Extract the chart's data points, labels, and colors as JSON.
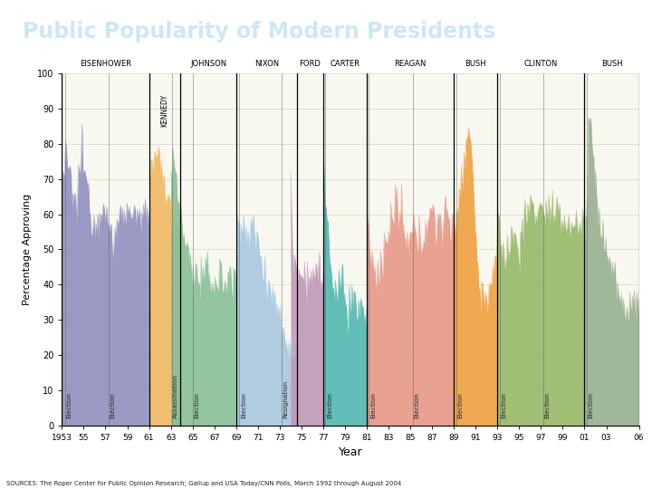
{
  "title": "Public Popularity of Modern Presidents",
  "title_bg": "#1479b8",
  "title_color": "#cce8f5",
  "xlabel": "Year",
  "ylabel": "Percentage Approving",
  "source_text": "SOURCES: The Roper Center for Public Opinion Research; Gallup and USA Today/CNN Polls, March 1992 through August 2004",
  "ylim": [
    0,
    100
  ],
  "chart_bg": "#f8f8f0",
  "presidents": [
    {
      "name": "EISENHOWER",
      "color": "#9090c0",
      "start": 1953,
      "end": 1961,
      "profile": [
        70,
        71,
        72,
        74,
        75,
        74,
        73,
        72,
        71,
        70,
        68,
        66,
        65,
        63,
        62,
        62,
        64,
        66,
        69,
        73,
        74,
        75,
        76,
        75,
        74,
        72,
        70,
        68,
        67,
        65,
        63,
        62,
        61,
        60,
        59,
        58,
        57,
        57,
        58,
        59,
        60,
        61,
        62,
        63,
        63,
        62,
        61,
        60,
        59,
        58,
        57,
        56,
        55,
        54,
        53,
        52,
        52,
        53,
        54,
        55,
        56,
        57,
        58,
        59,
        60,
        61,
        62,
        63,
        63,
        62,
        61,
        60,
        59,
        58,
        59,
        60,
        61,
        62,
        63,
        62,
        61,
        60,
        59,
        58,
        57,
        56,
        57,
        58,
        59,
        60,
        59,
        58,
        57,
        56,
        57,
        58
      ]
    },
    {
      "name": "KENNEDY",
      "color": "#f0b860",
      "start": 1961,
      "end": 1963.9,
      "profile": [
        72,
        73,
        74,
        76,
        77,
        78,
        79,
        78,
        77,
        75,
        73,
        71,
        70,
        69,
        68,
        67,
        66,
        65,
        64,
        63,
        62,
        62,
        61,
        60,
        59,
        59,
        58,
        57,
        56
      ]
    },
    {
      "name": "JOHNSON",
      "color": "#88c098",
      "start": 1963,
      "end": 1969,
      "profile": [
        76,
        75,
        74,
        73,
        72,
        70,
        68,
        66,
        64,
        62,
        60,
        58,
        56,
        55,
        54,
        53,
        52,
        51,
        50,
        49,
        48,
        47,
        46,
        45,
        44,
        44,
        43,
        43,
        42,
        42,
        41,
        41,
        41,
        42,
        42,
        41,
        41,
        41,
        42,
        43,
        43,
        42,
        41,
        41,
        42,
        42,
        41,
        40,
        41,
        42,
        41,
        40,
        41,
        42,
        43,
        42,
        41,
        40,
        41,
        42,
        41,
        40,
        41,
        42,
        43,
        42,
        41,
        40,
        41,
        42,
        41,
        40
      ]
    },
    {
      "name": "NIXON",
      "color": "#a8c8e0",
      "start": 1969,
      "end": 1974.6,
      "profile": [
        60,
        62,
        61,
        60,
        58,
        57,
        56,
        55,
        54,
        53,
        52,
        51,
        52,
        54,
        57,
        60,
        58,
        56,
        54,
        52,
        50,
        49,
        48,
        47,
        46,
        45,
        44,
        43,
        42,
        41,
        40,
        39,
        38,
        37,
        36,
        35,
        34,
        33,
        32,
        31,
        30,
        29,
        28,
        27,
        26,
        25,
        24,
        23,
        22,
        21,
        20,
        21,
        22,
        23,
        24,
        25
      ]
    },
    {
      "name": "FORD",
      "color": "#c098b8",
      "start": 1974,
      "end": 1977,
      "profile": [
        71,
        60,
        52,
        50,
        48,
        47,
        46,
        45,
        44,
        45,
        44,
        43,
        43,
        42,
        43,
        44,
        43,
        42,
        43,
        42,
        41,
        42,
        43,
        44,
        43,
        42,
        43,
        42,
        41,
        42,
        43,
        44,
        43,
        42,
        41,
        42
      ]
    },
    {
      "name": "CARTER",
      "color": "#50b8b0",
      "start": 1977,
      "end": 1981,
      "profile": [
        66,
        70,
        68,
        65,
        60,
        55,
        50,
        47,
        44,
        42,
        40,
        38,
        36,
        35,
        34,
        35,
        36,
        38,
        40,
        42,
        44,
        42,
        40,
        38,
        36,
        34,
        32,
        30,
        32,
        34,
        36,
        38,
        37,
        36,
        35,
        34,
        33,
        32,
        31,
        30,
        32,
        34,
        35,
        34,
        33,
        32,
        31,
        30
      ]
    },
    {
      "name": "REAGAN",
      "color": "#e89888",
      "start": 1981,
      "end": 1989,
      "profile": [
        53,
        55,
        54,
        52,
        50,
        48,
        46,
        44,
        43,
        42,
        41,
        42,
        43,
        44,
        45,
        46,
        47,
        48,
        49,
        50,
        51,
        52,
        53,
        54,
        55,
        56,
        57,
        58,
        59,
        60,
        61,
        62,
        63,
        62,
        61,
        60,
        59,
        58,
        57,
        56,
        55,
        54,
        53,
        52,
        51,
        50,
        51,
        52,
        53,
        54,
        55,
        56,
        55,
        54,
        53,
        52,
        51,
        50,
        51,
        52,
        53,
        54,
        55,
        56,
        57,
        58,
        59,
        60,
        61,
        62,
        61,
        60,
        59,
        58,
        57,
        56,
        57,
        58,
        59,
        60,
        59,
        58,
        57,
        56,
        57,
        58,
        59,
        60,
        59,
        58,
        57,
        56,
        57,
        58,
        59,
        62
      ]
    },
    {
      "name": "BUSH",
      "color": "#f0a040",
      "start": 1989,
      "end": 1993,
      "profile": [
        56,
        57,
        58,
        60,
        62,
        64,
        66,
        68,
        70,
        72,
        74,
        76,
        78,
        80,
        83,
        85,
        84,
        82,
        78,
        74,
        70,
        65,
        60,
        55,
        50,
        46,
        42,
        40,
        38,
        37,
        36,
        35,
        34,
        35,
        36,
        37,
        38,
        39,
        40,
        41,
        42,
        43,
        44,
        45,
        46,
        47,
        48
      ]
    },
    {
      "name": "CLINTON",
      "color": "#98b868",
      "start": 1993,
      "end": 2001,
      "profile": [
        58,
        56,
        55,
        54,
        52,
        51,
        50,
        49,
        48,
        47,
        48,
        49,
        50,
        51,
        52,
        53,
        54,
        55,
        54,
        53,
        52,
        51,
        50,
        51,
        52,
        53,
        54,
        55,
        56,
        57,
        58,
        59,
        60,
        61,
        62,
        63,
        64,
        63,
        62,
        61,
        60,
        59,
        60,
        61,
        62,
        63,
        64,
        63,
        62,
        61,
        60,
        59,
        60,
        61,
        62,
        61,
        60,
        59,
        60,
        61,
        60,
        59,
        58,
        57,
        58,
        59,
        60,
        59,
        58,
        57,
        58,
        59,
        60,
        59,
        58,
        57,
        56,
        57,
        58,
        57,
        56,
        57,
        58,
        57,
        56,
        57,
        58,
        57,
        56,
        57,
        58,
        57,
        56,
        57,
        58,
        57
      ]
    },
    {
      "name": "BUSH",
      "color": "#98b090",
      "start": 2001,
      "end": 2006,
      "profile": [
        55,
        58,
        60,
        65,
        87,
        88,
        87,
        85,
        82,
        78,
        74,
        70,
        67,
        65,
        63,
        61,
        59,
        57,
        56,
        55,
        54,
        53,
        52,
        51,
        50,
        49,
        48,
        47,
        46,
        45,
        44,
        43,
        42,
        41,
        40,
        39,
        38,
        37,
        36,
        35,
        34,
        33,
        32,
        31,
        30,
        31,
        32,
        33,
        34,
        35,
        36,
        37,
        38,
        37,
        36,
        35,
        34,
        35,
        36,
        37
      ]
    }
  ],
  "president_boundaries": [
    1953,
    1961,
    1963.9,
    1969,
    1974.6,
    1977,
    1981,
    1989,
    1993,
    2001,
    2006
  ],
  "election_lines": [
    {
      "year": 1953.3,
      "label": "Election"
    },
    {
      "year": 1957.3,
      "label": "Election"
    },
    {
      "year": 1963.1,
      "label": "Assassination"
    },
    {
      "year": 1965.0,
      "label": "Election"
    },
    {
      "year": 1969.3,
      "label": "Election"
    },
    {
      "year": 1973.2,
      "label": "Resignation"
    },
    {
      "year": 1977.2,
      "label": "Election"
    },
    {
      "year": 1981.2,
      "label": "Election"
    },
    {
      "year": 1985.2,
      "label": "Election"
    },
    {
      "year": 1989.2,
      "label": "Election"
    },
    {
      "year": 1993.2,
      "label": "Election"
    },
    {
      "year": 1997.2,
      "label": "Election"
    },
    {
      "year": 2001.2,
      "label": "Election"
    }
  ],
  "xtick_years": [
    1953,
    1955,
    1957,
    1959,
    1961,
    1963,
    1965,
    1967,
    1969,
    1971,
    1973,
    1975,
    1977,
    1979,
    1981,
    1983,
    1985,
    1987,
    1989,
    1991,
    1993,
    1995,
    1997,
    1999,
    2001,
    2003,
    2006
  ],
  "xtick_labels": [
    "1953",
    "55",
    "57",
    "59",
    "61",
    "63",
    "65",
    "67",
    "69",
    "71",
    "73",
    "75",
    "77",
    "79",
    "81",
    "83",
    "85",
    "87",
    "89",
    "91",
    "93",
    "95",
    "97",
    "99",
    "01",
    "03",
    "06"
  ]
}
